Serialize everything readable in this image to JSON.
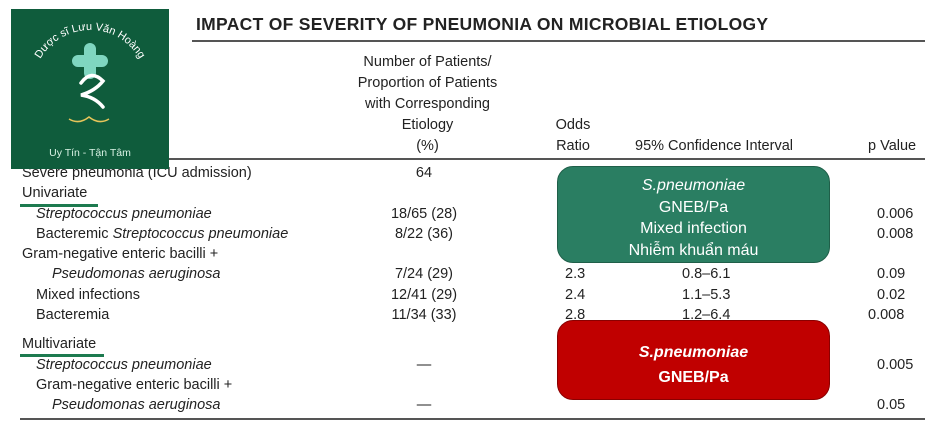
{
  "title": "IMPACT OF SEVERITY OF PNEUMONIA ON MICROBIAL ETIOLOGY",
  "headers": {
    "patients": [
      "Number of Patients/",
      "Proportion of Patients",
      "with Corresponding",
      "Etiology",
      "(%)"
    ],
    "odds": [
      "Odds",
      "Ratio"
    ],
    "ci": "95% Confidence Interval",
    "p": "p Value"
  },
  "severe_row": {
    "label": "Severe pneumonia (ICU admission)",
    "patients": "64"
  },
  "univariate": {
    "label": "Univariate",
    "rows": [
      {
        "label": "Streptococcus pneumoniae",
        "patients": "18/65 (28)",
        "odds": "",
        "ci": "",
        "p": "0.006"
      },
      {
        "label_plain": "Bacteremic ",
        "label_italic": "Streptococcus pneumoniae",
        "patients": "8/22 (36)",
        "odds": "",
        "ci": "",
        "p": "0.008"
      },
      {
        "label": "Gram-negative enteric bacilli +"
      },
      {
        "label": "Pseudomonas aeruginosa",
        "patients": "7/24 (29)",
        "odds": "2.3",
        "ci": "0.8–6.1",
        "p": "0.09"
      },
      {
        "label": "Mixed infections",
        "patients": "12/41 (29)",
        "odds": "2.4",
        "ci": "1.1–5.3",
        "p": "0.02"
      },
      {
        "label": "Bacteremia",
        "patients": "11/34 (33)",
        "odds": "2.8",
        "ci": "1.2–6.4",
        "p": "0.008"
      }
    ]
  },
  "multivariate": {
    "label": "Multivariate",
    "rows": [
      {
        "label": "Streptococcus pneumoniae",
        "patients": "—",
        "p": "0.005"
      },
      {
        "label": "Gram-negative enteric bacilli +"
      },
      {
        "label": "Pseudomonas aeruginosa",
        "patients": "—",
        "p": "0.05"
      }
    ]
  },
  "annotation_green": [
    "S.pneumoniae",
    "GNEB/Pa",
    "Mixed infection",
    "Nhiễm khuẩn máu"
  ],
  "annotation_red": [
    "S.pneumoniae",
    "GNEB/Pa"
  ],
  "logo": {
    "name": "Dược sĩ Lưu Văn Hoàng",
    "motto": "Uy Tín - Tận Tâm",
    "colors": {
      "background": "#0f5c3c",
      "mark": "#7fd6c0"
    }
  },
  "colors": {
    "green_box": "#2a7e62",
    "red_box": "#c00000",
    "underline": "#1d7a4f"
  }
}
